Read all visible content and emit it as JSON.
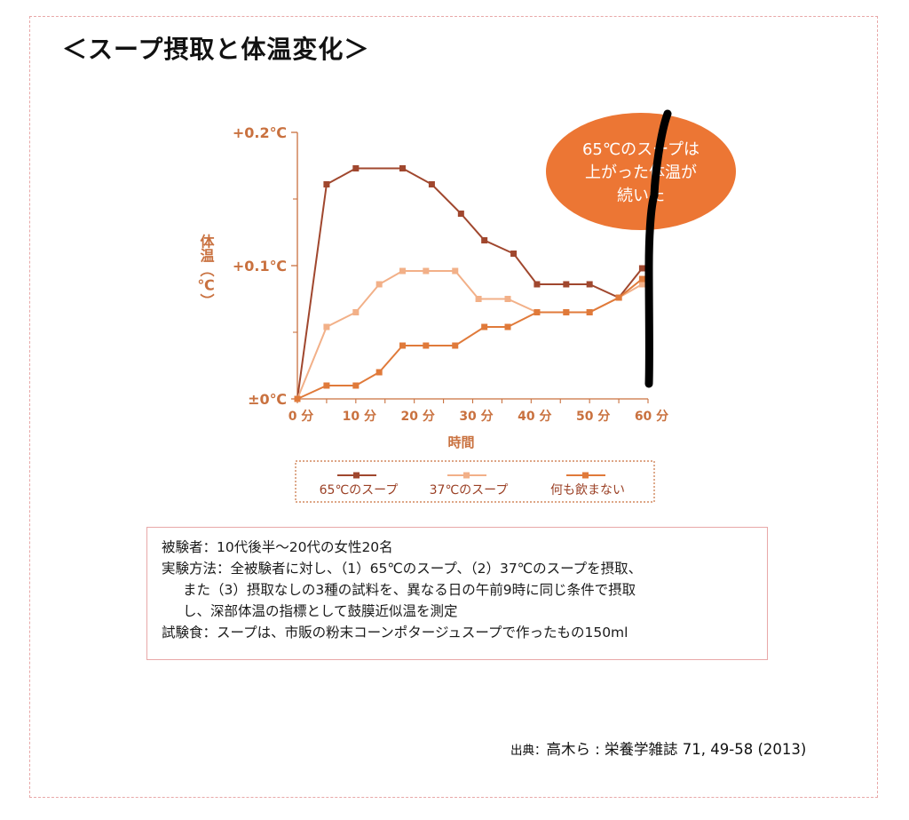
{
  "title": "＜スープ摂取と体温変化＞",
  "chart_data": {
    "type": "line",
    "x": [
      0,
      4,
      8,
      12,
      16,
      20,
      24,
      28,
      32,
      36,
      40,
      44,
      48,
      52,
      56,
      60
    ],
    "x_ticks": [
      0,
      10,
      20,
      30,
      40,
      50,
      60
    ],
    "x_tick_labels": [
      "0 分",
      "10 分",
      "20 分",
      "30 分",
      "40 分",
      "50 分",
      "60 分"
    ],
    "xlabel": "時間",
    "ylabel": "体温（℃）",
    "y_ticks": [
      0,
      0.1,
      0.2
    ],
    "y_tick_labels": [
      "±0℃",
      "+0.1℃",
      "+0.2℃"
    ],
    "ylim": [
      0,
      0.2
    ],
    "xlim": [
      0,
      60
    ],
    "series": [
      {
        "name": "65℃のスープ",
        "color": "#a0472e",
        "points": [
          [
            0,
            0
          ],
          [
            5,
            0.161
          ],
          [
            10,
            0.173
          ],
          [
            18,
            0.173
          ],
          [
            23,
            0.161
          ],
          [
            28,
            0.139
          ],
          [
            32,
            0.119
          ],
          [
            37,
            0.109
          ],
          [
            41,
            0.086
          ],
          [
            46,
            0.086
          ],
          [
            50,
            0.086
          ],
          [
            55,
            0.076
          ],
          [
            59,
            0.098
          ]
        ]
      },
      {
        "name": "37℃のスープ",
        "color": "#f2b088",
        "points": [
          [
            0,
            0
          ],
          [
            5,
            0.054
          ],
          [
            10,
            0.065
          ],
          [
            14,
            0.086
          ],
          [
            18,
            0.096
          ],
          [
            22,
            0.096
          ],
          [
            27,
            0.096
          ],
          [
            31,
            0.075
          ],
          [
            36,
            0.075
          ],
          [
            41,
            0.065
          ],
          [
            46,
            0.065
          ],
          [
            50,
            0.065
          ],
          [
            55,
            0.076
          ],
          [
            59,
            0.086
          ]
        ]
      },
      {
        "name": "何も飲まない",
        "color": "#e07a3a",
        "points": [
          [
            0,
            0
          ],
          [
            5,
            0.01
          ],
          [
            10,
            0.01
          ],
          [
            14,
            0.02
          ],
          [
            18,
            0.04
          ],
          [
            22,
            0.04
          ],
          [
            27,
            0.04
          ],
          [
            32,
            0.054
          ],
          [
            36,
            0.054
          ],
          [
            41,
            0.065
          ],
          [
            46,
            0.065
          ],
          [
            50,
            0.065
          ],
          [
            55,
            0.076
          ],
          [
            59,
            0.09
          ]
        ]
      }
    ],
    "legend_position": "bottom",
    "annotation": {
      "text_lines": [
        "65℃のスープは",
        "上がった体温が",
        "続いた"
      ],
      "color": "#ec7634"
    }
  },
  "notes": [
    "被験者：10代後半～20代の女性20名",
    "実験方法：全被験者に対し、（1）65℃のスープ、（2）37℃のスープを摂取、",
    "また（3）摂取なしの3種の試料を、異なる日の午前9時に同じ条件で摂取",
    "し、深部体温の指標として鼓膜近似温を測定",
    "試験食：スープは、市販の粉末コーンポタージュスープで作ったもの150ml"
  ],
  "source": {
    "label": "出典：",
    "text": "高木ら : 栄養学雑誌 71, 49-58 (2013)"
  },
  "colors": {
    "axis": "#c9713f",
    "border": "#e8a8a8",
    "legend_border": "#c9713f"
  }
}
